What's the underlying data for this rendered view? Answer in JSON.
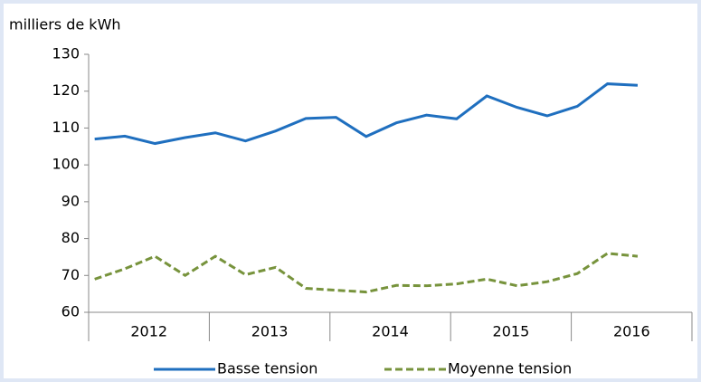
{
  "chart_data": {
    "type": "line",
    "y_axis_label": "milliers de kWh",
    "categories": [
      null,
      null,
      null,
      null,
      null,
      null,
      null,
      null,
      null,
      null,
      null,
      null,
      null,
      null,
      null,
      null,
      null,
      null,
      null
    ],
    "groups": [
      "2012",
      "2013",
      "2014",
      "2015",
      "2016"
    ],
    "series": [
      {
        "name": "Basse tension",
        "color": "#1f6fbf",
        "dash": false,
        "values": [
          107,
          107.8,
          105.8,
          107.4,
          108.7,
          106.5,
          109.2,
          112.6,
          112.9,
          107.7,
          111.4,
          113.5,
          112.5,
          118.7,
          115.6,
          113.3,
          115.9,
          122,
          121.6
        ]
      },
      {
        "name": "Moyenne tension",
        "color": "#77933c",
        "dash": true,
        "values": [
          69,
          71.8,
          75.2,
          70,
          75.2,
          70.2,
          72.2,
          66.5,
          66,
          65.5,
          67.3,
          67.2,
          67.7,
          69,
          67.2,
          68.3,
          70.5,
          76,
          75.2
        ]
      }
    ],
    "ylim": [
      60,
      130
    ],
    "yticks": [
      60,
      70,
      80,
      90,
      100,
      110,
      120,
      130
    ],
    "grid": false,
    "legend": "bottom"
  }
}
